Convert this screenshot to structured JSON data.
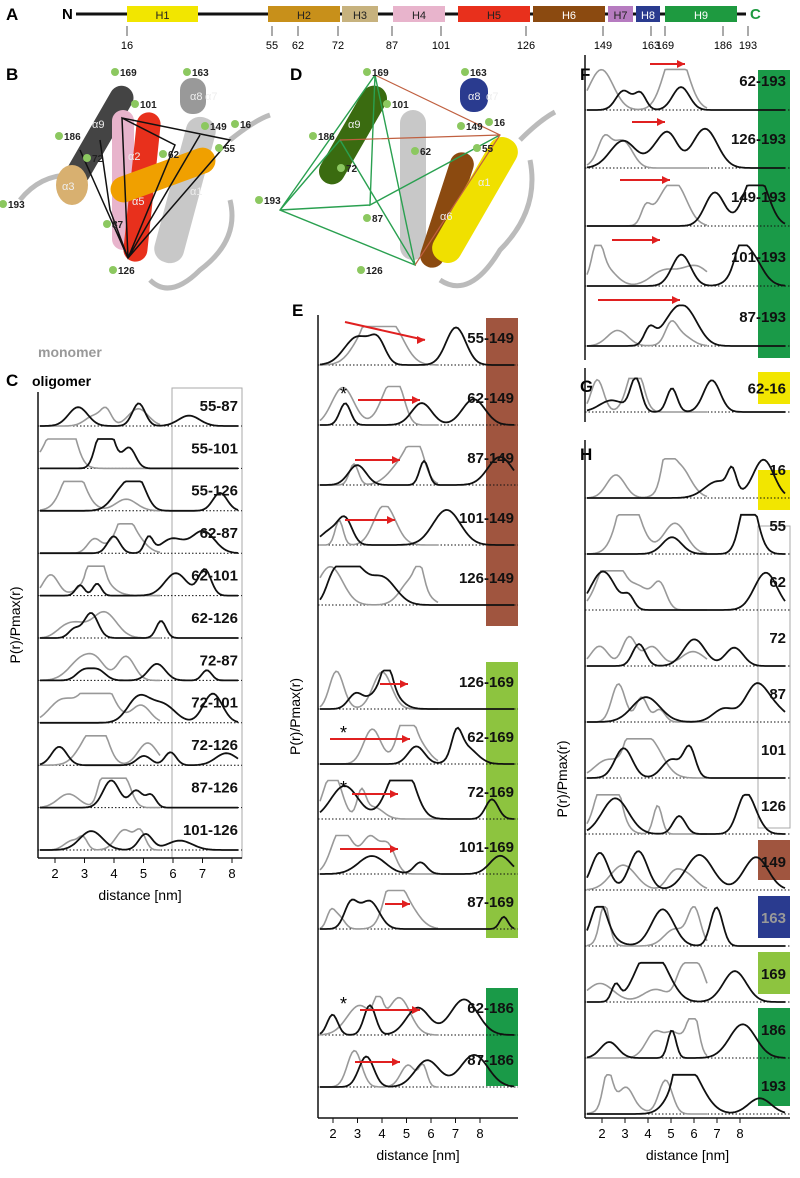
{
  "sequence": {
    "label": "A",
    "n_term": "N",
    "c_term": "C",
    "helices": [
      "H1",
      "H2",
      "H3",
      "H4",
      "H5",
      "H6",
      "H7",
      "H8",
      "H9"
    ],
    "residues": [
      "16",
      "55",
      "62",
      "72",
      "87",
      "101",
      "126",
      "149",
      "163",
      "169",
      "186",
      "193"
    ]
  },
  "structure_b": {
    "label": "B",
    "residues": [
      "169",
      "163",
      "101",
      "186",
      "72",
      "62",
      "55",
      "149",
      "16",
      "193",
      "87",
      "126"
    ],
    "helices": [
      "α9",
      "α8",
      "α7",
      "α2",
      "α3",
      "α5",
      "α1"
    ]
  },
  "structure_d": {
    "label": "D",
    "residues": [
      "169",
      "163",
      "101",
      "186",
      "72",
      "62",
      "55",
      "149",
      "16",
      "193",
      "87",
      "126"
    ],
    "helices": [
      "α9",
      "α8",
      "α7",
      "α1",
      "α6"
    ]
  },
  "panel_c": {
    "label": "C",
    "monomer": "monomer",
    "oligomer": "oligomer",
    "pairs": [
      "55-87",
      "55-101",
      "55-126",
      "62-87",
      "62-101",
      "62-126",
      "72-87",
      "72-101",
      "72-126",
      "87-126",
      "101-126"
    ],
    "x_ticks": [
      "2",
      "3",
      "4",
      "5",
      "6",
      "7",
      "8"
    ],
    "x_label": "distance [nm]",
    "y_label": "P(r)/Pmax(r)"
  },
  "panel_e": {
    "label": "E",
    "pairs": [
      "55-149",
      "62-149",
      "87-149",
      "101-149",
      "126-149",
      "126-169",
      "62-169",
      "72-169",
      "101-169",
      "87-169",
      "62-186",
      "87-186"
    ],
    "asterisks": [
      "*",
      "*",
      "*",
      "*"
    ],
    "x_ticks": [
      "2",
      "3",
      "4",
      "5",
      "6",
      "7",
      "8"
    ],
    "x_label": "distance [nm]",
    "y_label": "P(r)/Pmax(r)"
  },
  "panel_f": {
    "label": "F",
    "pairs": [
      "62-193",
      "126-193",
      "149-193",
      "101-193",
      "87-193"
    ]
  },
  "panel_g": {
    "label": "G",
    "pairs": [
      "62-16"
    ]
  },
  "panel_h": {
    "label": "H",
    "residues": [
      "16",
      "55",
      "62",
      "72",
      "87",
      "101",
      "126",
      "149",
      "163",
      "169",
      "186",
      "193"
    ],
    "x_ticks": [
      "2",
      "3",
      "4",
      "5",
      "6",
      "7",
      "8"
    ],
    "x_label": "distance [nm]",
    "y_label": "P(r)/Pmax(r)"
  }
}
